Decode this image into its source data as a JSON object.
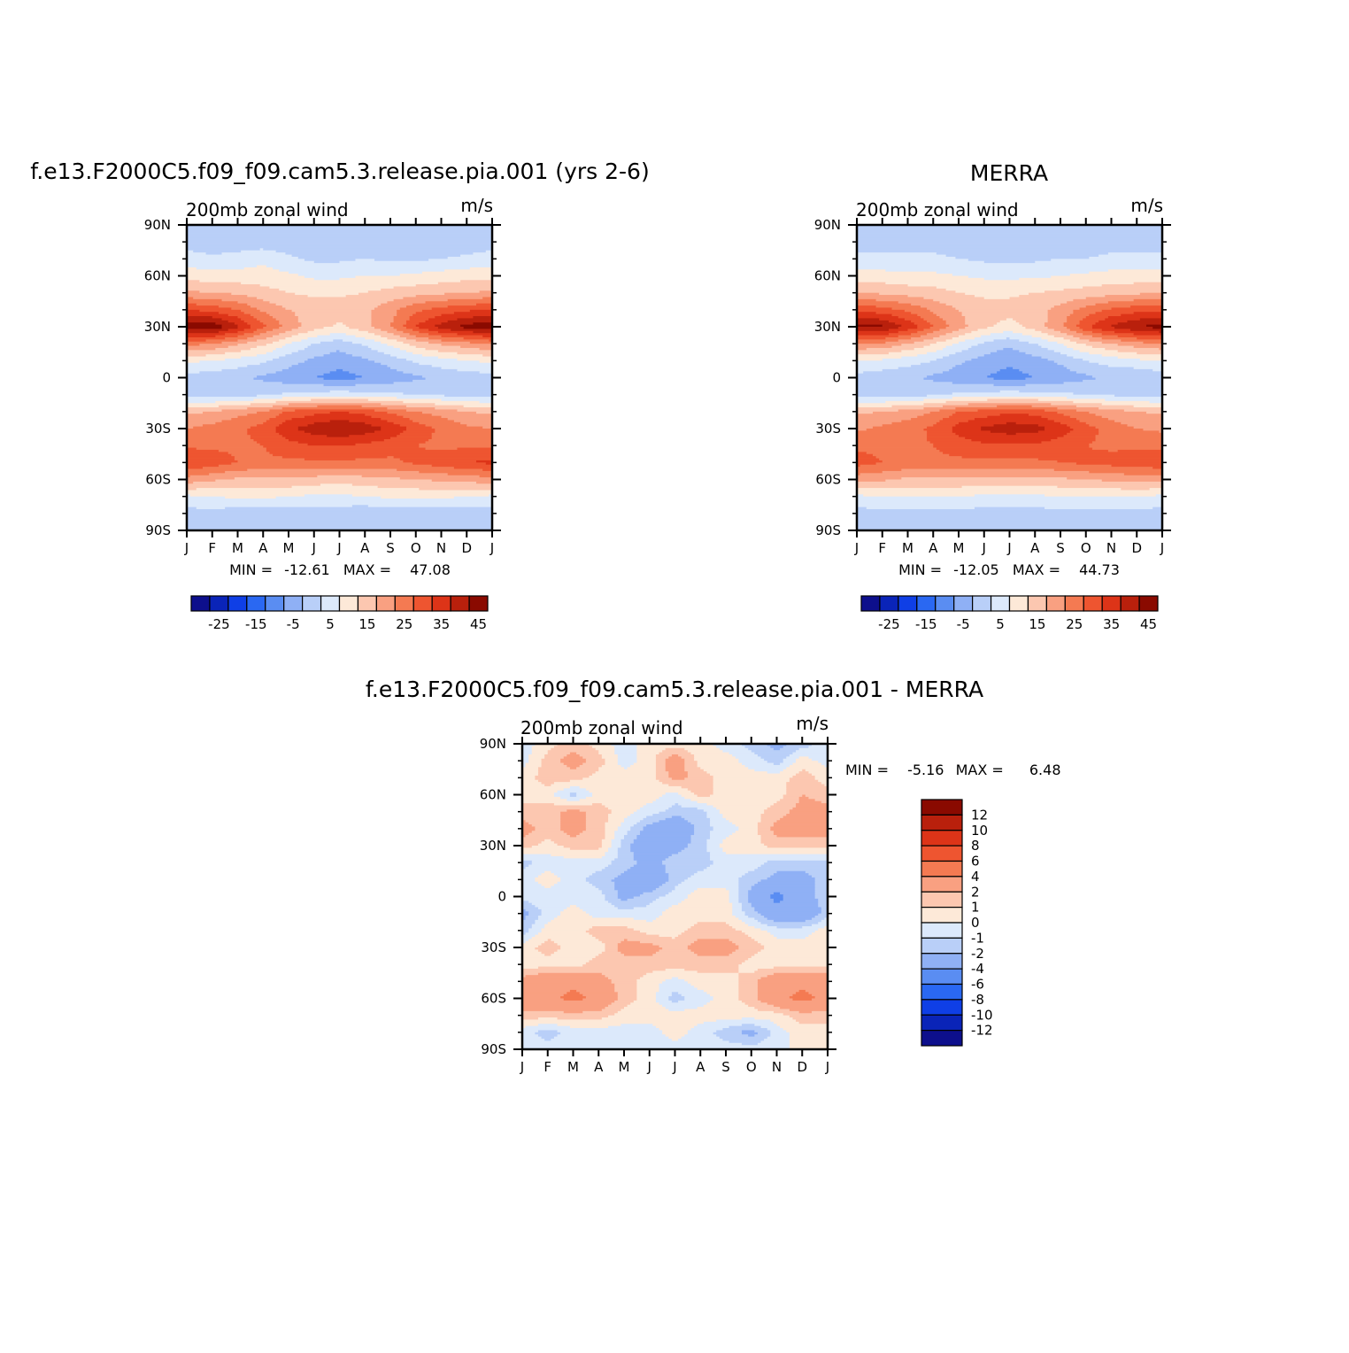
{
  "chart_data": [
    {
      "type": "heatmap",
      "title": "f.e13.F2000C5.f09_f09.cam5.3.release.pia.001 (yrs 2-6)",
      "subtitle": "200mb zonal wind",
      "units": "m/s",
      "x_ticks": [
        "J",
        "F",
        "M",
        "A",
        "M",
        "J",
        "J",
        "A",
        "S",
        "O",
        "N",
        "D",
        "J"
      ],
      "y_ticks": [
        "90N",
        "60N",
        "30N",
        "0",
        "30S",
        "60S",
        "90S"
      ],
      "ylim": [
        -90,
        90
      ],
      "stats": {
        "min_label": "MIN =",
        "min": "-12.61",
        "max_label": "MAX =",
        "max": "47.08"
      },
      "colorbar_labels": [
        "-25",
        "-15",
        "-5",
        "5",
        "15",
        "25",
        "35",
        "45"
      ],
      "colorbar_colors": [
        "#0d0f8c",
        "#0a24b8",
        "#0f3fe6",
        "#2a68f2",
        "#5a8df2",
        "#8fb0f5",
        "#b9cff8",
        "#dce9fb",
        "#fde9d8",
        "#fcc7b0",
        "#f9a081",
        "#f47a52",
        "#ee5530",
        "#dd3418",
        "#b9200c",
        "#8a0a00"
      ],
      "lat": [
        90,
        80,
        70,
        60,
        50,
        40,
        30,
        20,
        10,
        0,
        -10,
        -20,
        -30,
        -40,
        -50,
        -60,
        -70,
        -80,
        -90
      ],
      "field": [
        [
          -4,
          -4,
          -4,
          -4,
          -4,
          -4,
          -4,
          -4,
          -4,
          -4,
          -4,
          -4,
          -4
        ],
        [
          -2,
          -3,
          -3,
          -3,
          -3,
          -2,
          -2,
          -2,
          -3,
          -3,
          -3,
          -3,
          -2
        ],
        [
          2,
          1,
          2,
          4,
          1,
          -1,
          -1,
          0,
          -1,
          -1,
          0,
          1,
          2
        ],
        [
          8,
          7,
          7,
          7,
          6,
          4,
          4,
          5,
          5,
          6,
          7,
          8,
          8
        ],
        [
          16,
          15,
          14,
          12,
          10,
          9,
          9,
          10,
          12,
          13,
          14,
          15,
          16
        ],
        [
          30,
          28,
          25,
          19,
          15,
          13,
          13,
          14,
          18,
          24,
          27,
          29,
          30
        ],
        [
          44,
          44,
          36,
          26,
          18,
          12,
          9,
          13,
          20,
          30,
          37,
          42,
          44
        ],
        [
          22,
          20,
          16,
          11,
          5,
          0,
          -3,
          1,
          6,
          12,
          16,
          18,
          21
        ],
        [
          6,
          5,
          3,
          1,
          -3,
          -6,
          -8,
          -6,
          -3,
          1,
          3,
          5,
          6
        ],
        [
          -2,
          -3,
          -4,
          -6,
          -8,
          -10,
          -12,
          -10,
          -8,
          -6,
          -4,
          -3,
          -2
        ],
        [
          -3,
          -3,
          -2,
          -1,
          1,
          2,
          3,
          2,
          1,
          0,
          -1,
          -2,
          -3
        ],
        [
          14,
          15,
          18,
          20,
          26,
          28,
          30,
          28,
          24,
          20,
          18,
          15,
          14
        ],
        [
          20,
          22,
          24,
          27,
          34,
          38,
          40,
          38,
          34,
          28,
          24,
          21,
          20
        ],
        [
          24,
          24,
          24,
          25,
          28,
          30,
          30,
          29,
          27,
          25,
          24,
          24,
          24
        ],
        [
          30,
          28,
          25,
          24,
          24,
          24,
          24,
          24,
          24,
          26,
          28,
          30,
          31
        ],
        [
          18,
          16,
          14,
          14,
          14,
          13,
          12,
          13,
          14,
          15,
          16,
          17,
          18
        ],
        [
          4,
          5,
          6,
          6,
          5,
          4,
          4,
          5,
          6,
          6,
          6,
          5,
          4
        ],
        [
          -2,
          -2,
          -3,
          -3,
          -3,
          -3,
          -3,
          -4,
          -4,
          -3,
          -3,
          -3,
          -2
        ],
        [
          -3,
          -3,
          -4,
          -4,
          -4,
          -4,
          -4,
          -5,
          -5,
          -4,
          -4,
          -4,
          -3
        ]
      ]
    },
    {
      "type": "heatmap",
      "title": "MERRA",
      "subtitle": "200mb zonal wind",
      "units": "m/s",
      "x_ticks": [
        "J",
        "F",
        "M",
        "A",
        "M",
        "J",
        "J",
        "A",
        "S",
        "O",
        "N",
        "D",
        "J"
      ],
      "y_ticks": [
        "90N",
        "60N",
        "30N",
        "0",
        "30S",
        "60S",
        "90S"
      ],
      "ylim": [
        -90,
        90
      ],
      "stats": {
        "min_label": "MIN =",
        "min": "-12.05",
        "max_label": "MAX =",
        "max": "44.73"
      },
      "colorbar_labels": [
        "-25",
        "-15",
        "-5",
        "5",
        "15",
        "25",
        "35",
        "45"
      ],
      "colorbar_colors": [
        "#0d0f8c",
        "#0a24b8",
        "#0f3fe6",
        "#2a68f2",
        "#5a8df2",
        "#8fb0f5",
        "#b9cff8",
        "#dce9fb",
        "#fde9d8",
        "#fcc7b0",
        "#f9a081",
        "#f47a52",
        "#ee5530",
        "#dd3418",
        "#b9200c",
        "#8a0a00"
      ],
      "lat": [
        90,
        80,
        70,
        60,
        50,
        40,
        30,
        20,
        10,
        0,
        -10,
        -20,
        -30,
        -40,
        -50,
        -60,
        -70,
        -80,
        -90
      ],
      "field": [
        [
          -4,
          -4,
          -4,
          -4,
          -4,
          -4,
          -4,
          -4,
          -4,
          -4,
          -4,
          -4,
          -4
        ],
        [
          -2,
          -2,
          -2,
          -2,
          -2,
          -2,
          -2,
          -2,
          -2,
          -2,
          -2,
          -2,
          -2
        ],
        [
          1,
          1,
          1,
          1,
          0,
          -1,
          -1,
          -1,
          0,
          0,
          1,
          1,
          1
        ],
        [
          7,
          7,
          6,
          6,
          5,
          4,
          4,
          4,
          5,
          6,
          7,
          7,
          7
        ],
        [
          15,
          14,
          13,
          12,
          10,
          9,
          9,
          10,
          11,
          12,
          13,
          14,
          15
        ],
        [
          29,
          27,
          24,
          19,
          15,
          12,
          12,
          13,
          17,
          22,
          26,
          28,
          29
        ],
        [
          41,
          41,
          34,
          25,
          17,
          11,
          8,
          12,
          19,
          29,
          36,
          40,
          42
        ],
        [
          20,
          19,
          15,
          10,
          4,
          -1,
          -4,
          0,
          5,
          11,
          15,
          18,
          20
        ],
        [
          5,
          4,
          2,
          0,
          -4,
          -7,
          -9,
          -7,
          -4,
          0,
          2,
          4,
          5
        ],
        [
          -2,
          -3,
          -4,
          -6,
          -8,
          -10,
          -12,
          -10,
          -8,
          -6,
          -4,
          -5,
          -3
        ],
        [
          -3,
          -3,
          -2,
          -1,
          1,
          2,
          3,
          2,
          1,
          0,
          -1,
          -2,
          -3
        ],
        [
          14,
          15,
          17,
          20,
          25,
          27,
          29,
          28,
          24,
          20,
          17,
          15,
          14
        ],
        [
          19,
          21,
          23,
          26,
          32,
          36,
          38,
          37,
          33,
          27,
          23,
          20,
          19
        ],
        [
          24,
          24,
          24,
          25,
          27,
          29,
          29,
          29,
          27,
          25,
          24,
          24,
          24
        ],
        [
          27,
          25,
          24,
          24,
          24,
          24,
          24,
          24,
          25,
          26,
          27,
          28,
          29
        ],
        [
          17,
          16,
          14,
          14,
          14,
          13,
          13,
          13,
          14,
          15,
          16,
          17,
          17
        ],
        [
          4,
          5,
          5,
          5,
          5,
          4,
          4,
          4,
          5,
          5,
          5,
          5,
          4
        ],
        [
          -2,
          -2,
          -2,
          -2,
          -2,
          -2,
          -2,
          -2,
          -2,
          -2,
          -2,
          -2,
          -2
        ],
        [
          -3,
          -3,
          -3,
          -3,
          -3,
          -3,
          -3,
          -3,
          -3,
          -3,
          -3,
          -3,
          -3
        ]
      ]
    },
    {
      "type": "heatmap",
      "title": "f.e13.F2000C5.f09_f09.cam5.3.release.pia.001 - MERRA",
      "subtitle": "200mb zonal wind",
      "units": "m/s",
      "x_ticks": [
        "J",
        "F",
        "M",
        "A",
        "M",
        "J",
        "J",
        "A",
        "S",
        "O",
        "N",
        "D",
        "J"
      ],
      "y_ticks": [
        "90N",
        "60N",
        "30N",
        "0",
        "30S",
        "60S",
        "90S"
      ],
      "ylim": [
        -90,
        90
      ],
      "stats": {
        "min_label": "MIN =",
        "min": "-5.16",
        "max_label": "MAX =",
        "max": "6.48"
      },
      "colorbar_labels": [
        "12",
        "10",
        "8",
        "6",
        "4",
        "2",
        "1",
        "0",
        "-1",
        "-2",
        "-4",
        "-6",
        "-8",
        "-10",
        "-12"
      ],
      "colorbar_colors": [
        "#8a0a00",
        "#b9200c",
        "#dd3418",
        "#ee5530",
        "#f47a52",
        "#f9a081",
        "#fcc7b0",
        "#fde9d8",
        "#dce9fb",
        "#b9cff8",
        "#8fb0f5",
        "#5a8df2",
        "#2a68f2",
        "#0f3fe6",
        "#0a24b8",
        "#0d0f8c"
      ],
      "lat": [
        90,
        80,
        70,
        60,
        50,
        40,
        30,
        20,
        10,
        0,
        -10,
        -20,
        -30,
        -40,
        -50,
        -60,
        -70,
        -80,
        -90
      ],
      "field": [
        [
          -0.5,
          0.5,
          1.5,
          0.5,
          -0.5,
          0.5,
          0.5,
          0.5,
          -0.5,
          -1.5,
          -2.5,
          -1.5,
          -0.5
        ],
        [
          -0.5,
          1.5,
          2.5,
          1.5,
          -0.5,
          0.5,
          3,
          0.5,
          0.5,
          -0.5,
          -1.5,
          0.5,
          -0.5
        ],
        [
          0.5,
          1.5,
          1.5,
          0.5,
          0.5,
          0.5,
          2.5,
          1.5,
          0.5,
          0.5,
          0.5,
          1.5,
          0.5
        ],
        [
          0.5,
          0.5,
          -1.5,
          0.5,
          0.5,
          0.5,
          -0.5,
          1.5,
          0.5,
          0.5,
          0.5,
          2,
          1.5
        ],
        [
          1.5,
          1.5,
          2.5,
          1.5,
          0.5,
          -0.5,
          -1.5,
          -1.5,
          0.5,
          0.5,
          1.5,
          2.5,
          2.5
        ],
        [
          2.5,
          1.5,
          2.5,
          1.5,
          -0.5,
          -2.5,
          -3.5,
          -1.5,
          -0.5,
          0.5,
          2.5,
          2.5,
          2.5
        ],
        [
          1.5,
          0.5,
          1.5,
          1.5,
          -1.5,
          -3.5,
          -2.5,
          -1.5,
          0.5,
          0.5,
          1.5,
          1.5,
          1.5
        ],
        [
          -1.5,
          -0.5,
          -0.5,
          -0.5,
          -1.5,
          -2.5,
          -1.5,
          -1.5,
          -0.5,
          -0.5,
          -1.5,
          -1.5,
          -1.5
        ],
        [
          -0.5,
          0.5,
          -0.5,
          -1.5,
          -2.5,
          -3.5,
          -1.5,
          -0.5,
          -0.5,
          -1.5,
          -2.5,
          -2.5,
          -1.5
        ],
        [
          -0.5,
          -0.5,
          -0.5,
          -0.5,
          -2.5,
          -1.5,
          -0.5,
          0.5,
          0.5,
          -2.5,
          -4.5,
          -2.5,
          -1.5
        ],
        [
          -2.5,
          -0.5,
          0.5,
          -0.5,
          -0.5,
          -0.5,
          0.5,
          0.5,
          0.5,
          -1.5,
          -3.5,
          -3.5,
          -1.5
        ],
        [
          -1.5,
          0.5,
          0.5,
          1.5,
          1.5,
          0.5,
          0.5,
          1.5,
          1.5,
          0.5,
          -0.5,
          -0.5,
          0.5
        ],
        [
          0.5,
          1.5,
          0.5,
          0.5,
          2.5,
          2.5,
          1.5,
          2.5,
          2.5,
          1.5,
          0.5,
          0.5,
          0.5
        ],
        [
          0.5,
          0.5,
          0.5,
          1.5,
          1.5,
          1.5,
          1.5,
          1.5,
          1.5,
          0.5,
          0.5,
          0.5,
          0.5
        ],
        [
          2.5,
          3.5,
          3.5,
          2.5,
          1.5,
          0.5,
          -0.5,
          0.5,
          0.5,
          1.5,
          3.5,
          3.5,
          3.5
        ],
        [
          3.5,
          3.5,
          4.5,
          3.5,
          1.5,
          0.5,
          -1.5,
          -0.5,
          0.5,
          1.5,
          3.5,
          4.5,
          3.5
        ],
        [
          1.5,
          1.5,
          1.5,
          1.5,
          0.5,
          0.5,
          0.5,
          0.5,
          0.5,
          0.5,
          0.5,
          1.5,
          1.5
        ],
        [
          -0.5,
          -1.5,
          -0.5,
          -0.5,
          -0.5,
          -0.5,
          0.5,
          -0.5,
          -1.5,
          -2.5,
          -0.5,
          0.5,
          0.5
        ],
        [
          -0.5,
          -0.5,
          -0.5,
          -0.5,
          -0.5,
          -0.5,
          -0.5,
          -0.5,
          -0.5,
          -0.5,
          -0.5,
          0.5,
          0.5
        ]
      ]
    }
  ]
}
